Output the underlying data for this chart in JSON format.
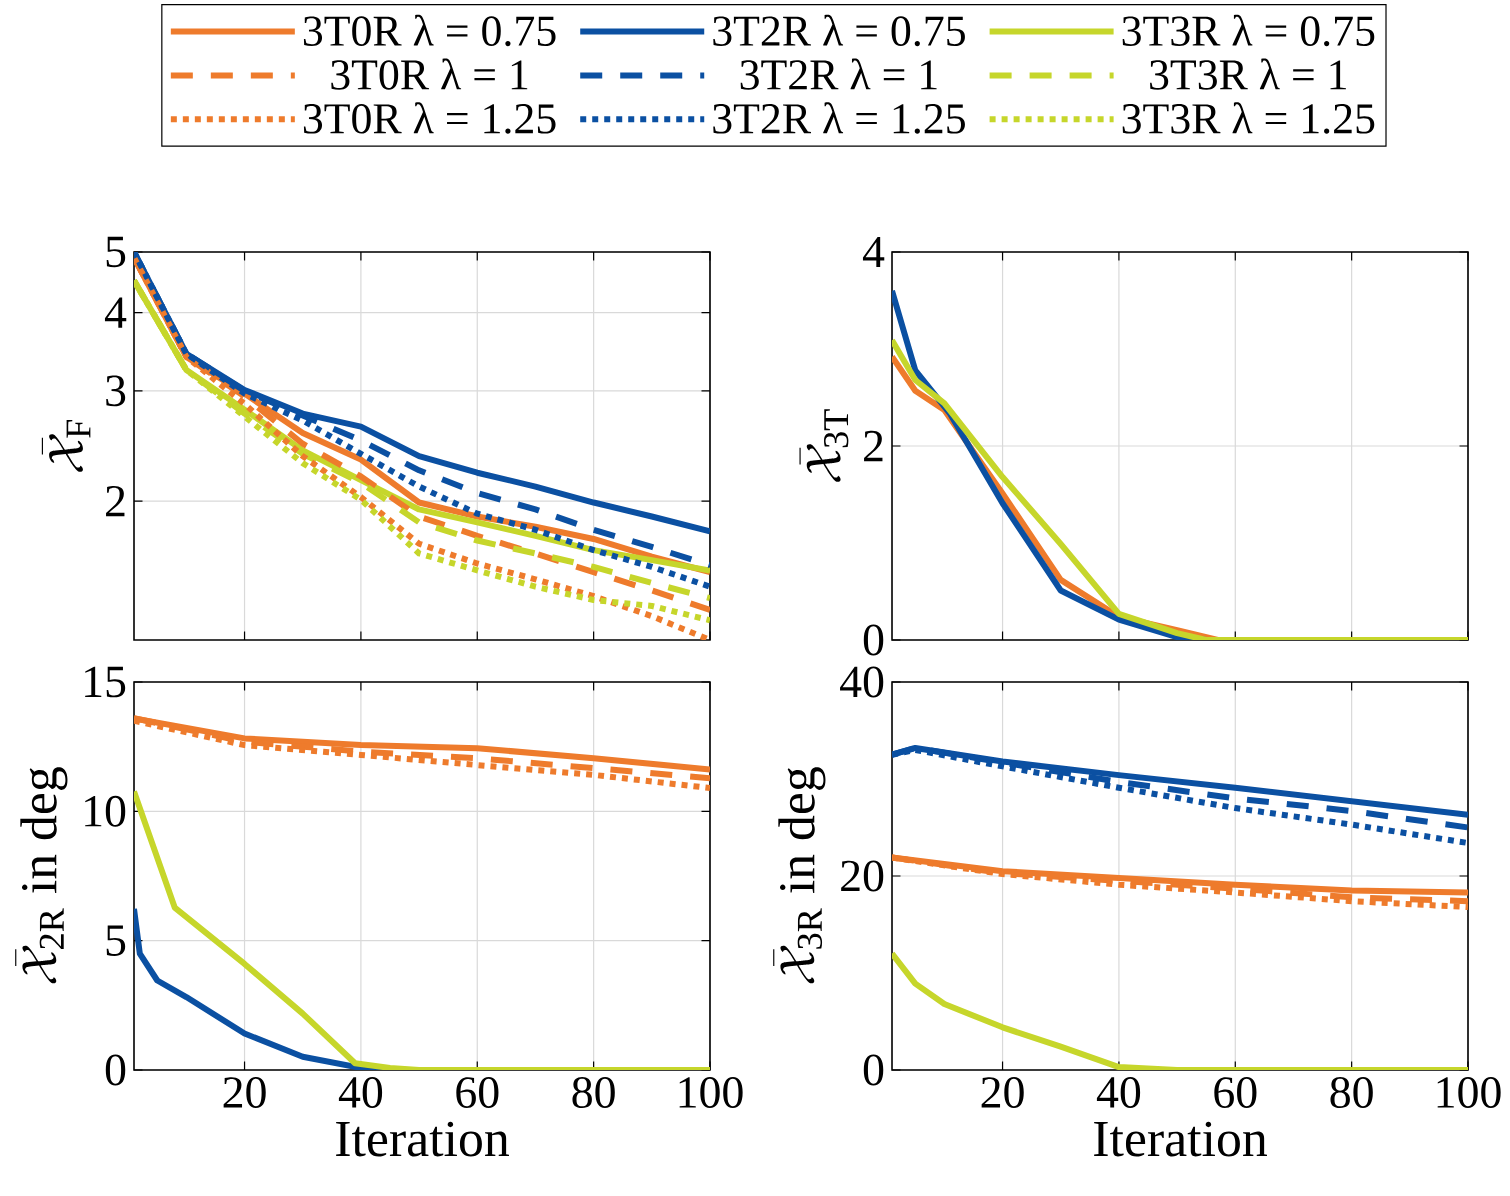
{
  "chart_data": [
    {
      "type": "line",
      "ylabel": "\\bar{\\mathcal{X}}_{\\mathrm{F}}",
      "log": "y",
      "xlim": [
        1,
        100
      ],
      "xticks": [
        20,
        40,
        60,
        80,
        100
      ],
      "ylim": [
        1.2,
        5
      ],
      "yticks": [
        2,
        3,
        4,
        5
      ],
      "grid": true,
      "tick_labels": "y",
      "legend": "top",
      "x": [
        1,
        10,
        20,
        30,
        40,
        50,
        60,
        70,
        80,
        90,
        100
      ],
      "series": [
        {
          "name": "3T0R λ = 0.75",
          "color": "#ee7b2c",
          "line_style": "solid",
          "values": [
            4.9,
            3.4,
            2.97,
            2.57,
            2.33,
            1.99,
            1.89,
            1.82,
            1.74,
            1.63,
            1.54
          ]
        },
        {
          "name": "3T2R λ = 0.75",
          "color": "#0b50a2",
          "line_style": "solid",
          "values": [
            5.0,
            3.44,
            3.01,
            2.76,
            2.63,
            2.36,
            2.22,
            2.11,
            1.99,
            1.89,
            1.79
          ]
        },
        {
          "name": "3T3R λ = 0.75",
          "color": "#c6d62b",
          "line_style": "solid",
          "values": [
            4.5,
            3.24,
            2.8,
            2.41,
            2.16,
            1.94,
            1.85,
            1.76,
            1.67,
            1.61,
            1.55
          ]
        },
        {
          "name": "3T0R λ = 1",
          "color": "#ee7b2c",
          "line_style": "dashed",
          "values": [
            4.9,
            3.4,
            2.94,
            2.47,
            2.19,
            1.89,
            1.76,
            1.65,
            1.54,
            1.44,
            1.34
          ]
        },
        {
          "name": "3T2R λ = 1",
          "color": "#0b50a2",
          "line_style": "dashed",
          "values": [
            5.0,
            3.44,
            3.0,
            2.74,
            2.5,
            2.24,
            2.06,
            1.94,
            1.8,
            1.69,
            1.58
          ]
        },
        {
          "name": "3T3R λ = 1",
          "color": "#c6d62b",
          "line_style": "dashed",
          "values": [
            4.5,
            3.24,
            2.76,
            2.38,
            2.14,
            1.85,
            1.73,
            1.65,
            1.57,
            1.48,
            1.4
          ]
        },
        {
          "name": "3T0R λ = 1.25",
          "color": "#ee7b2c",
          "line_style": "dotted",
          "values": [
            4.9,
            3.4,
            2.86,
            2.36,
            2.03,
            1.71,
            1.59,
            1.5,
            1.41,
            1.31,
            1.2
          ]
        },
        {
          "name": "3T2R λ = 1.25",
          "color": "#0b50a2",
          "line_style": "dotted",
          "values": [
            5.0,
            3.44,
            2.97,
            2.69,
            2.38,
            2.11,
            1.91,
            1.8,
            1.67,
            1.57,
            1.46
          ]
        },
        {
          "name": "3T3R λ = 1.25",
          "color": "#c6d62b",
          "line_style": "dotted",
          "values": [
            4.5,
            3.24,
            2.73,
            2.3,
            2.01,
            1.65,
            1.55,
            1.46,
            1.39,
            1.36,
            1.29
          ]
        }
      ]
    },
    {
      "type": "line",
      "ylabel": "\\bar{\\mathcal{X}}_{\\mathrm{3T}}",
      "xlim": [
        1,
        100
      ],
      "xticks": [
        20,
        40,
        60,
        80,
        100
      ],
      "ylim": [
        0,
        4
      ],
      "yticks": [
        0,
        2,
        4
      ],
      "grid": true,
      "tick_labels": "y",
      "series": [
        {
          "color": "#ee7b2c",
          "line_style": "solid",
          "x": [
            1,
            5,
            10,
            20,
            30,
            40,
            50,
            57,
            100
          ],
          "values": [
            2.92,
            2.57,
            2.37,
            1.51,
            0.62,
            0.24,
            0.1,
            0,
            0
          ]
        },
        {
          "color": "#0b50a2",
          "line_style": "solid",
          "x": [
            1,
            5,
            11,
            20,
            30,
            40,
            50,
            55,
            100
          ],
          "values": [
            3.6,
            2.78,
            2.33,
            1.41,
            0.51,
            0.21,
            0.03,
            0,
            0
          ]
        },
        {
          "color": "#c6d62b",
          "line_style": "solid",
          "x": [
            1,
            5,
            10,
            20,
            30,
            40,
            50,
            55,
            100
          ],
          "values": [
            3.09,
            2.68,
            2.44,
            1.68,
            0.99,
            0.27,
            0.07,
            0,
            0
          ]
        }
      ]
    },
    {
      "type": "line",
      "xlabel": "Iteration",
      "ylabel": "\\bar{\\mathcal{X}}_{\\mathrm{2R}}\\ \\mathrm{in\\ deg}",
      "xlim": [
        1,
        100
      ],
      "xticks": [
        20,
        40,
        60,
        80,
        100
      ],
      "ylim": [
        0,
        15
      ],
      "yticks": [
        0,
        5,
        10,
        15
      ],
      "grid": true,
      "series": [
        {
          "color": "#ee7b2c",
          "line_style": "solid",
          "x": [
            1,
            20,
            40,
            60,
            80,
            100
          ],
          "values": [
            13.59,
            12.82,
            12.56,
            12.44,
            12.05,
            11.62
          ]
        },
        {
          "color": "#ee7b2c",
          "line_style": "dashed",
          "x": [
            1,
            20,
            40,
            60,
            80,
            100
          ],
          "values": [
            13.6,
            12.69,
            12.31,
            12.05,
            11.67,
            11.28
          ]
        },
        {
          "color": "#ee7b2c",
          "line_style": "dotted",
          "x": [
            1,
            20,
            40,
            60,
            80,
            100
          ],
          "values": [
            13.5,
            12.56,
            12.18,
            11.79,
            11.41,
            10.9
          ]
        },
        {
          "color": "#0b50a2",
          "line_style": "solid",
          "x": [
            1,
            2,
            5,
            10,
            20,
            30,
            40,
            45
          ],
          "values": [
            6.23,
            4.5,
            3.46,
            2.82,
            1.41,
            0.51,
            0.08,
            0
          ]
        },
        {
          "color": "#c6d62b",
          "line_style": "solid",
          "x": [
            1,
            8,
            20,
            30,
            39,
            45,
            50,
            100
          ],
          "values": [
            10.77,
            6.28,
            4.1,
            2.18,
            0.26,
            0.08,
            0,
            0
          ]
        }
      ]
    },
    {
      "type": "line",
      "xlabel": "Iteration",
      "ylabel": "\\bar{\\mathcal{X}}_{\\mathrm{3R}}\\ \\mathrm{in\\ deg}",
      "xlim": [
        1,
        100
      ],
      "xticks": [
        20,
        40,
        60,
        80,
        100
      ],
      "ylim": [
        0,
        40
      ],
      "yticks": [
        0,
        20,
        40
      ],
      "grid": true,
      "series": [
        {
          "color": "#0b50a2",
          "line_style": "solid",
          "x": [
            1,
            5,
            20,
            40,
            60,
            80,
            100
          ],
          "values": [
            32.5,
            33.2,
            31.8,
            30.4,
            29.1,
            27.7,
            26.3
          ]
        },
        {
          "color": "#0b50a2",
          "line_style": "dashed",
          "x": [
            1,
            5,
            20,
            40,
            60,
            80,
            100
          ],
          "values": [
            32.5,
            33.2,
            31.7,
            29.7,
            28.0,
            26.7,
            25.0
          ]
        },
        {
          "color": "#0b50a2",
          "line_style": "dotted",
          "x": [
            1,
            5,
            20,
            40,
            60,
            80,
            100
          ],
          "values": [
            32.5,
            33.0,
            31.3,
            29.1,
            27.0,
            25.3,
            23.4
          ]
        },
        {
          "color": "#ee7b2c",
          "line_style": "solid",
          "x": [
            1,
            20,
            40,
            60,
            80,
            100
          ],
          "values": [
            21.9,
            20.5,
            19.8,
            19.1,
            18.5,
            18.3
          ]
        },
        {
          "color": "#ee7b2c",
          "line_style": "dashed",
          "x": [
            1,
            20,
            40,
            60,
            80,
            100
          ],
          "values": [
            21.9,
            20.3,
            19.5,
            18.7,
            17.8,
            17.4
          ]
        },
        {
          "color": "#ee7b2c",
          "line_style": "dotted",
          "x": [
            1,
            20,
            40,
            60,
            80,
            100
          ],
          "values": [
            21.9,
            20.2,
            19.1,
            18.3,
            17.4,
            16.8
          ]
        },
        {
          "color": "#c6d62b",
          "line_style": "solid",
          "x": [
            1,
            5,
            10,
            20,
            30,
            40,
            50,
            100
          ],
          "values": [
            12.0,
            8.9,
            6.8,
            4.4,
            2.4,
            0.3,
            0,
            0
          ]
        }
      ]
    }
  ]
}
